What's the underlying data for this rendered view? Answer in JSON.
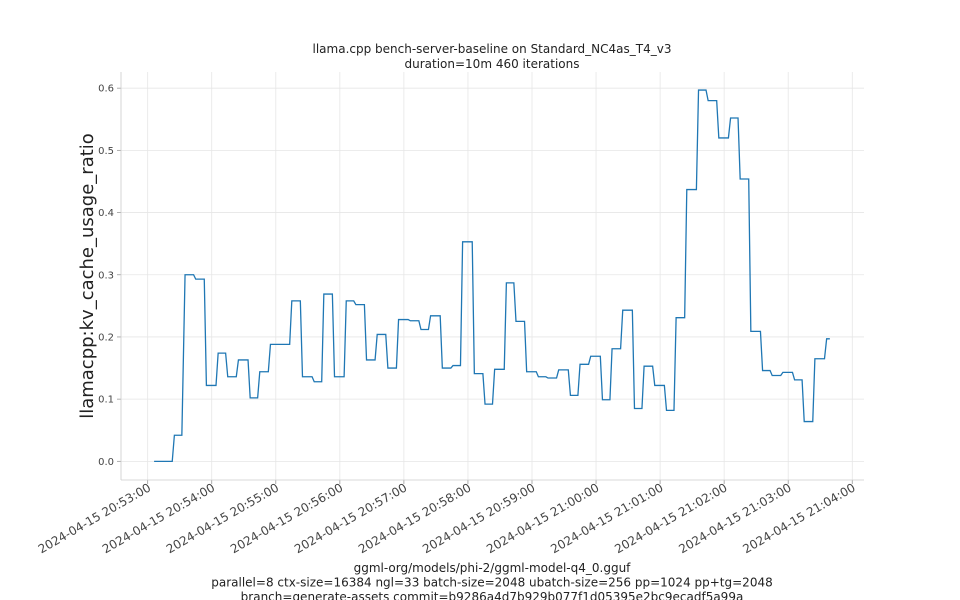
{
  "chart_data": {
    "type": "line",
    "title": "llama.cpp bench-server-baseline on Standard_NC4as_T4_v3",
    "subtitle": "duration=10m 460 iterations",
    "ylabel": "llamacpp:kv_cache_usage_ratio",
    "xlabel": [
      "ggml-org/models/phi-2/ggml-model-q4_0.gguf",
      "parallel=8 ctx-size=16384 ngl=33 batch-size=2048 ubatch-size=256 pp=1024 pp+tg=2048",
      "branch=generate-assets commit=b9286a4d7b929b077f1d05395e2bc9ecadf5a99a"
    ],
    "color": "#1f77b4",
    "grid": true,
    "xlim": [
      "2024-04-15 20:52:35",
      "2024-04-15 21:04:11"
    ],
    "xticks": [
      "2024-04-15 20:53:00",
      "2024-04-15 20:54:00",
      "2024-04-15 20:55:00",
      "2024-04-15 20:56:00",
      "2024-04-15 20:57:00",
      "2024-04-15 20:58:00",
      "2024-04-15 20:59:00",
      "2024-04-15 21:00:00",
      "2024-04-15 21:01:00",
      "2024-04-15 21:02:00",
      "2024-04-15 21:03:00",
      "2024-04-15 21:04:00"
    ],
    "ylim": [
      -0.03,
      0.626
    ],
    "yticks": [
      {
        "value": 0,
        "label": "0.0"
      },
      0.1,
      0.2,
      0.3,
      0.4,
      0.5,
      0.6
    ],
    "x": [
      "2024-04-15 20:53:06",
      "2024-04-15 20:53:23",
      "2024-04-15 20:53:25",
      "2024-04-15 20:53:32",
      "2024-04-15 20:53:35",
      "2024-04-15 20:53:43",
      "2024-04-15 20:53:45",
      "2024-04-15 20:53:53",
      "2024-04-15 20:53:55",
      "2024-04-15 20:54:04",
      "2024-04-15 20:54:06",
      "2024-04-15 20:54:13",
      "2024-04-15 20:54:15",
      "2024-04-15 20:54:23",
      "2024-04-15 20:54:25",
      "2024-04-15 20:54:34",
      "2024-04-15 20:54:36",
      "2024-04-15 20:54:43",
      "2024-04-15 20:54:45",
      "2024-04-15 20:54:53",
      "2024-04-15 20:54:55",
      "2024-04-15 20:55:13",
      "2024-04-15 20:55:15",
      "2024-04-15 20:55:23",
      "2024-04-15 20:55:25",
      "2024-04-15 20:55:34",
      "2024-04-15 20:55:36",
      "2024-04-15 20:55:43",
      "2024-04-15 20:55:45",
      "2024-04-15 20:55:53",
      "2024-04-15 20:55:55",
      "2024-04-15 20:56:04",
      "2024-04-15 20:56:06",
      "2024-04-15 20:56:13",
      "2024-04-15 20:56:15",
      "2024-04-15 20:56:23",
      "2024-04-15 20:56:25",
      "2024-04-15 20:56:33",
      "2024-04-15 20:56:35",
      "2024-04-15 20:56:43",
      "2024-04-15 20:56:45",
      "2024-04-15 20:56:53",
      "2024-04-15 20:56:55",
      "2024-04-15 20:57:04",
      "2024-04-15 20:57:06",
      "2024-04-15 20:57:14",
      "2024-04-15 20:57:16",
      "2024-04-15 20:57:23",
      "2024-04-15 20:57:25",
      "2024-04-15 20:57:34",
      "2024-04-15 20:57:36",
      "2024-04-15 20:57:44",
      "2024-04-15 20:57:46",
      "2024-04-15 20:57:53",
      "2024-04-15 20:57:55",
      "2024-04-15 20:58:04",
      "2024-04-15 20:58:06",
      "2024-04-15 20:58:14",
      "2024-04-15 20:58:16",
      "2024-04-15 20:58:23",
      "2024-04-15 20:58:25",
      "2024-04-15 20:58:34",
      "2024-04-15 20:58:36",
      "2024-04-15 20:58:43",
      "2024-04-15 20:58:45",
      "2024-04-15 20:58:53",
      "2024-04-15 20:58:55",
      "2024-04-15 20:59:04",
      "2024-04-15 20:59:06",
      "2024-04-15 20:59:13",
      "2024-04-15 20:59:15",
      "2024-04-15 20:59:23",
      "2024-04-15 20:59:25",
      "2024-04-15 20:59:34",
      "2024-04-15 20:59:36",
      "2024-04-15 20:59:43",
      "2024-04-15 20:59:45",
      "2024-04-15 20:59:53",
      "2024-04-15 20:59:55",
      "2024-04-15 21:00:04",
      "2024-04-15 21:00:06",
      "2024-04-15 21:00:13",
      "2024-04-15 21:00:15",
      "2024-04-15 21:00:23",
      "2024-04-15 21:00:25",
      "2024-04-15 21:00:34",
      "2024-04-15 21:00:36",
      "2024-04-15 21:00:43",
      "2024-04-15 21:00:45",
      "2024-04-15 21:00:53",
      "2024-04-15 21:00:55",
      "2024-04-15 21:01:04",
      "2024-04-15 21:01:06",
      "2024-04-15 21:01:13",
      "2024-04-15 21:01:15",
      "2024-04-15 21:01:23",
      "2024-04-15 21:01:25",
      "2024-04-15 21:01:34",
      "2024-04-15 21:01:36",
      "2024-04-15 21:01:43",
      "2024-04-15 21:01:45",
      "2024-04-15 21:01:53",
      "2024-04-15 21:01:55",
      "2024-04-15 21:02:04",
      "2024-04-15 21:02:06",
      "2024-04-15 21:02:13",
      "2024-04-15 21:02:15",
      "2024-04-15 21:02:23",
      "2024-04-15 21:02:25",
      "2024-04-15 21:02:34",
      "2024-04-15 21:02:36",
      "2024-04-15 21:02:43",
      "2024-04-15 21:02:45",
      "2024-04-15 21:02:53",
      "2024-04-15 21:02:55",
      "2024-04-15 21:03:04",
      "2024-04-15 21:03:06",
      "2024-04-15 21:03:13",
      "2024-04-15 21:03:15",
      "2024-04-15 21:03:23",
      "2024-04-15 21:03:25",
      "2024-04-15 21:03:34",
      "2024-04-15 21:03:36",
      "2024-04-15 21:03:39"
    ],
    "values": [
      0.0,
      0.0,
      0.042,
      0.042,
      0.3,
      0.3,
      0.293,
      0.293,
      0.122,
      0.122,
      0.174,
      0.174,
      0.136,
      0.136,
      0.163,
      0.163,
      0.102,
      0.102,
      0.144,
      0.144,
      0.188,
      0.188,
      0.258,
      0.258,
      0.136,
      0.136,
      0.128,
      0.128,
      0.269,
      0.269,
      0.136,
      0.136,
      0.258,
      0.258,
      0.252,
      0.252,
      0.163,
      0.163,
      0.204,
      0.204,
      0.15,
      0.15,
      0.228,
      0.228,
      0.226,
      0.226,
      0.212,
      0.212,
      0.234,
      0.234,
      0.15,
      0.15,
      0.154,
      0.154,
      0.353,
      0.353,
      0.141,
      0.141,
      0.092,
      0.092,
      0.148,
      0.148,
      0.287,
      0.287,
      0.225,
      0.225,
      0.144,
      0.144,
      0.136,
      0.136,
      0.134,
      0.134,
      0.147,
      0.147,
      0.106,
      0.106,
      0.156,
      0.156,
      0.169,
      0.169,
      0.099,
      0.099,
      0.181,
      0.181,
      0.243,
      0.243,
      0.085,
      0.085,
      0.153,
      0.153,
      0.122,
      0.122,
      0.082,
      0.082,
      0.231,
      0.231,
      0.437,
      0.437,
      0.597,
      0.597,
      0.58,
      0.58,
      0.52,
      0.52,
      0.552,
      0.552,
      0.454,
      0.454,
      0.209,
      0.209,
      0.146,
      0.146,
      0.138,
      0.138,
      0.143,
      0.143,
      0.131,
      0.131,
      0.064,
      0.064,
      0.165,
      0.165,
      0.197,
      0.197
    ]
  }
}
